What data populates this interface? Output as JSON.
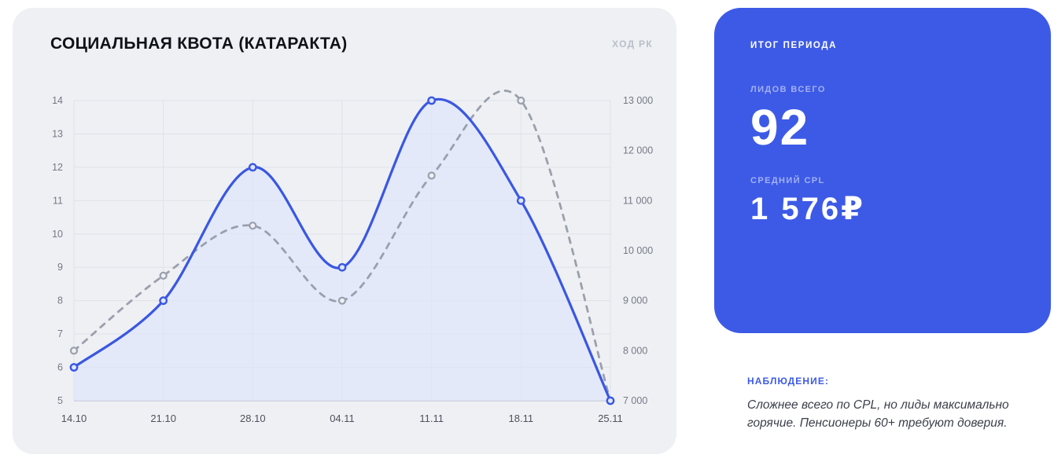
{
  "left_card": {
    "title": "СОЦИАЛЬНАЯ КВОТА (КАТАРАКТА)",
    "corner_label": "ХОД РК"
  },
  "summary_card": {
    "header": "ИТОГ ПЕРИОДА",
    "metrics": [
      {
        "label": "ЛИДОВ ВСЕГО",
        "value": "92"
      },
      {
        "label": "СРЕДНИЙ CPL",
        "value": "1 576₽"
      }
    ]
  },
  "observation": {
    "label": "НАБЛЮДЕНИЕ:",
    "text": "Сложнее всего по CPL, но лиды максимально горячие. Пенсионеры 60+ требуют доверия."
  },
  "colors": {
    "panel_blue": "#3d5ae6",
    "line_blue": "#3a57e2",
    "dashed_gray": "#9aa0ac",
    "card_bg": "#eef0f4"
  },
  "chart_data": {
    "type": "line",
    "title": "СОЦИАЛЬНАЯ КВОТА (КАТАРАКТА)",
    "categories": [
      "14.10",
      "21.10",
      "28.10",
      "04.11",
      "11.11",
      "18.11",
      "25.11"
    ],
    "series": [
      {
        "style": "solid",
        "axis": "left",
        "color": "#3a57e2",
        "values": [
          6,
          8,
          12,
          9,
          14,
          11,
          5
        ]
      },
      {
        "name": "ХОД РК",
        "style": "dashed",
        "axis": "right",
        "color": "#9aa0ac",
        "values": [
          8000,
          9500,
          10500,
          9000,
          11500,
          13000,
          7000
        ]
      }
    ],
    "left_axis": {
      "min": 5,
      "max": 14,
      "ticks": [
        5,
        6,
        7,
        8,
        9,
        10,
        11,
        12,
        13,
        14
      ]
    },
    "right_axis": {
      "min": 7000,
      "max": 13000,
      "ticks": [
        "7 000",
        "8 000",
        "9 000",
        "10 000",
        "11 000",
        "12 000",
        "13 000"
      ]
    },
    "grid": true,
    "area_fill": true,
    "legend_position": "top-right-label"
  }
}
